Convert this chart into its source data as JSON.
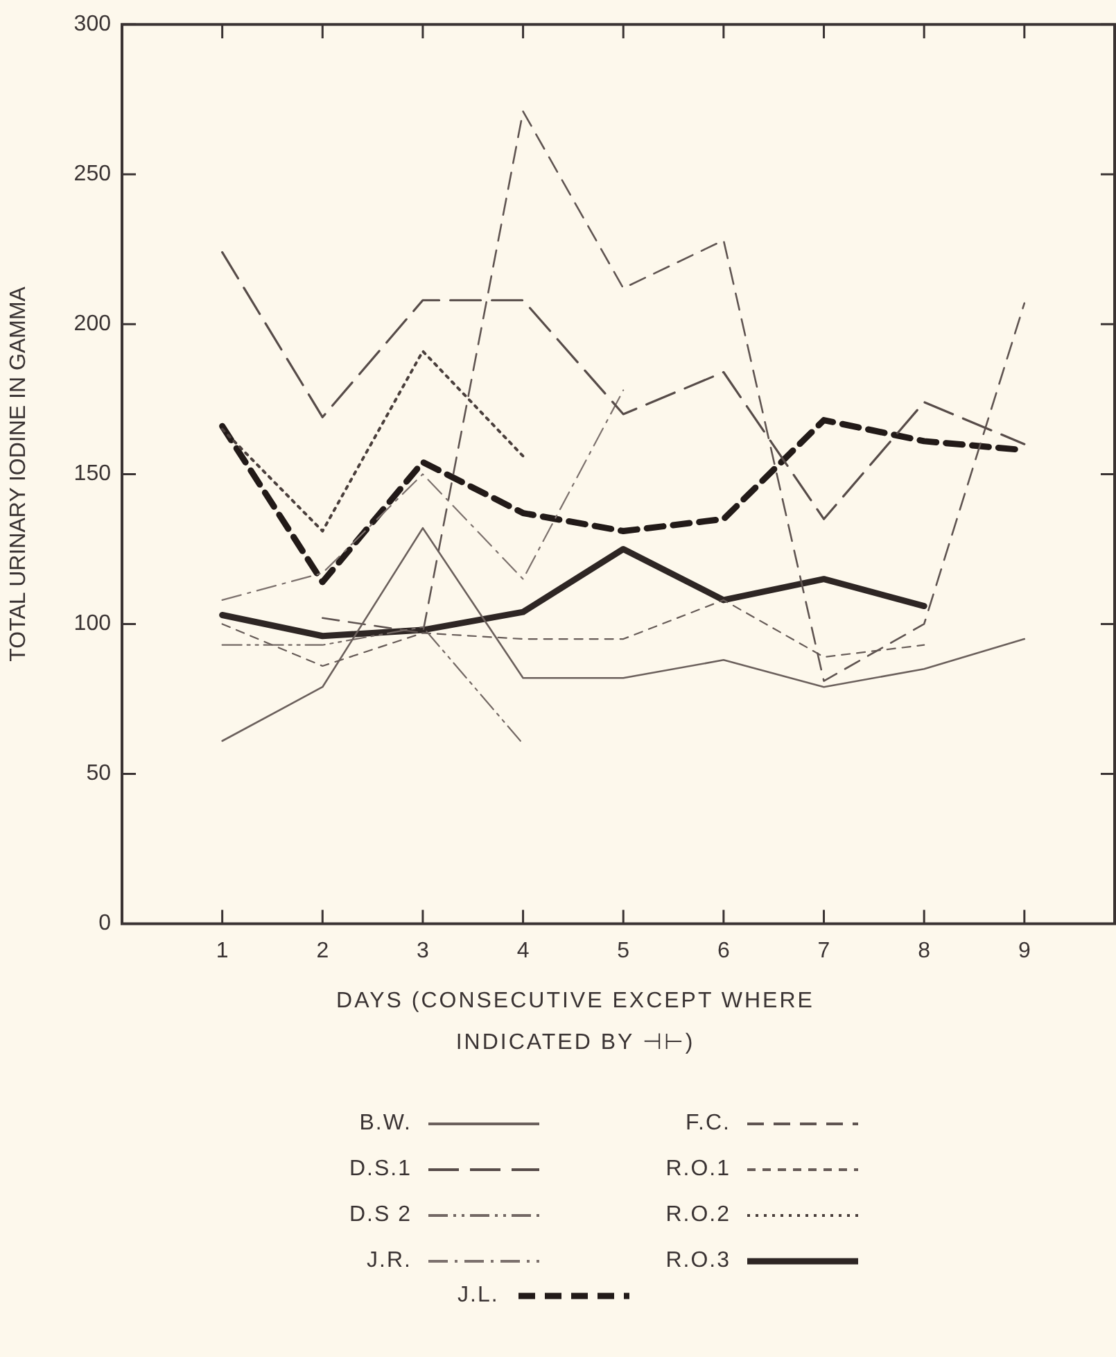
{
  "chart_data": {
    "type": "line",
    "ylabel": "TOTAL URINARY IODINE IN GAMMA",
    "xlabel": "DAYS (CONSECUTIVE EXCEPT WHERE INDICATED BY ⊣⊢)",
    "x": [
      1,
      2,
      3,
      4,
      5,
      6,
      7,
      8,
      9
    ],
    "xlim": [
      0,
      9.9
    ],
    "xticks": [
      1,
      2,
      3,
      4,
      5,
      6,
      7,
      8,
      9
    ],
    "ylim": [
      0,
      300
    ],
    "yticks": [
      0,
      50,
      100,
      150,
      200,
      250,
      300
    ],
    "grid": false,
    "legend": "bottom",
    "marker": "none",
    "series": [
      {
        "name": "B.W.",
        "color": "#6b605c",
        "line_style": "solid",
        "values": [
          61,
          79,
          132,
          82,
          82,
          88,
          79,
          85,
          95
        ]
      },
      {
        "name": "D.S.1",
        "color": "#574c49",
        "line_style": "long dashed",
        "values": [
          224,
          169,
          208,
          208,
          170,
          184,
          135,
          174,
          160
        ]
      },
      {
        "name": "D.S 2",
        "color": "#736864",
        "line_style": "dashdotdot",
        "values": [
          93,
          93,
          99,
          60,
          null,
          null,
          null,
          null,
          null
        ]
      },
      {
        "name": "J.R.",
        "color": "#7c716d",
        "line_style": "dashdot",
        "values": [
          108,
          117,
          150,
          115,
          178,
          null,
          null,
          null,
          null
        ]
      },
      {
        "name": "F.C.",
        "color": "#5f5451",
        "line_style": "dashed",
        "values": [
          null,
          102,
          97,
          271,
          212,
          228,
          81,
          100,
          207
        ]
      },
      {
        "name": "R.O.1",
        "color": "#665b57",
        "line_style": "short dashed",
        "values": [
          100,
          86,
          97,
          95,
          95,
          108,
          89,
          93,
          null
        ]
      },
      {
        "name": "R.O.2",
        "color": "#4a3f3c",
        "line_style": "dotted",
        "values": [
          165,
          131,
          191,
          156,
          null,
          null,
          null,
          null,
          null
        ]
      },
      {
        "name": "R.O.3",
        "color": "#2e2624",
        "line_style": "solid",
        "values": [
          103,
          96,
          98,
          104,
          125,
          108,
          115,
          106,
          null
        ]
      },
      {
        "name": "J.L.",
        "color": "#221a18",
        "line_style": "dashed",
        "values": [
          166,
          114,
          154,
          137,
          131,
          135,
          168,
          161,
          158
        ]
      }
    ]
  }
}
